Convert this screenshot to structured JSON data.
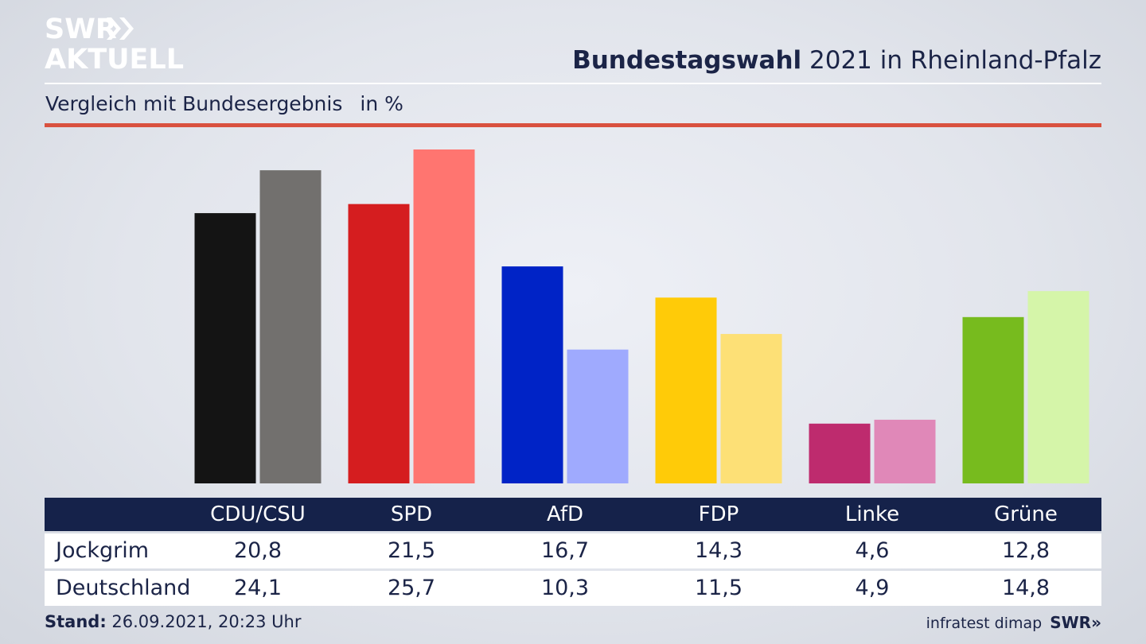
{
  "brand": {
    "line1": "SWR",
    "line2": "AKTUELL",
    "arrows": "»",
    "footer_brand": "SWR»"
  },
  "header": {
    "title_bold": "Bundestagswahl",
    "title_rest": " 2021 in Rheinland-Pfalz",
    "subtitle": "Vergleich mit Bundesergebnis",
    "unit": "in %"
  },
  "chart_data": {
    "type": "bar",
    "categories": [
      "CDU/CSU",
      "SPD",
      "AfD",
      "FDP",
      "Linke",
      "Grüne"
    ],
    "series": [
      {
        "name": "Jockgrim",
        "values": [
          20.8,
          21.5,
          16.7,
          14.3,
          4.6,
          12.8
        ],
        "colors": [
          "#141414",
          "#d51d1f",
          "#0023c6",
          "#ffcb08",
          "#be2b6e",
          "#77bb1e"
        ]
      },
      {
        "name": "Deutschland",
        "values": [
          24.1,
          25.7,
          10.3,
          11.5,
          4.9,
          14.8
        ],
        "colors": [
          "#72706e",
          "#ff7570",
          "#9faafe",
          "#fde076",
          "#e088b8",
          "#d5f5a9"
        ]
      }
    ],
    "ylim": [
      0,
      25.7
    ]
  },
  "table": {
    "columns": [
      "CDU/CSU",
      "SPD",
      "AfD",
      "FDP",
      "Linke",
      "Grüne"
    ],
    "rows": [
      {
        "label": "Jockgrim",
        "values": [
          "20,8",
          "21,5",
          "16,7",
          "14,3",
          "4,6",
          "12,8"
        ]
      },
      {
        "label": "Deutschland",
        "values": [
          "24,1",
          "25,7",
          "10,3",
          "11,5",
          "4,9",
          "14,8"
        ]
      }
    ]
  },
  "footer": {
    "stand_label": "Stand:",
    "stand_value": " 26.09.2021, 20:23 Uhr",
    "source": "infratest dimap"
  }
}
